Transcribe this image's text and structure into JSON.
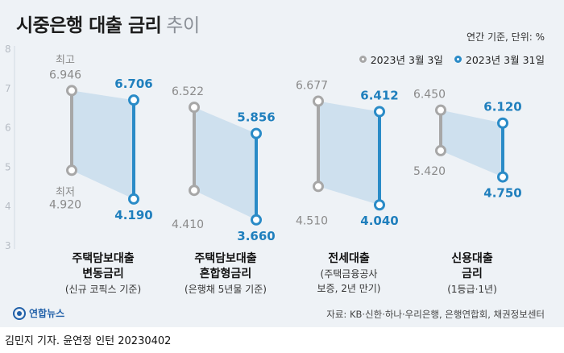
{
  "header": {
    "title": "시중은행 대출 금리",
    "title_suffix": "추이",
    "unit": "연간 기준, 단위: %"
  },
  "footer": {
    "logo_text": "연합뉴스",
    "source": "자료: KB·신한·하나·우리은행, 은행연합회, 채권정보센터",
    "credit": "김민지 기자. 윤연정 인턴  20230402"
  },
  "colors": {
    "old": "#a7a7a7",
    "new": "#2a8bc7",
    "band": "#b9d4ea",
    "grid": "#d3dae2"
  },
  "chart_data": {
    "type": "range",
    "title": "시중은행 대출 금리 추이",
    "ylabel": "연간 기준, 단위: %",
    "ylim": [
      3,
      8
    ],
    "yticks": [
      3,
      4,
      5,
      6,
      7,
      8
    ],
    "grid": false,
    "legend_position": "top-right",
    "series": [
      {
        "name": "2023년 3월 3일",
        "high": [
          6.946,
          6.522,
          6.677,
          6.45
        ],
        "low": [
          4.92,
          4.41,
          4.51,
          5.42
        ]
      },
      {
        "name": "2023년 3월 31일",
        "high": [
          6.706,
          5.856,
          6.412,
          6.12
        ],
        "low": [
          4.19,
          3.66,
          4.04,
          4.75
        ]
      }
    ],
    "categories": [
      {
        "title": [
          "주택담보대출",
          "변동금리"
        ],
        "note": [
          "(신규 코픽스 기준)"
        ]
      },
      {
        "title": [
          "주택담보대출",
          "혼합형금리"
        ],
        "note": [
          "(은행채 5년물 기준)"
        ]
      },
      {
        "title": [
          "전세대출"
        ],
        "note": [
          "(주택금융공사",
          "보증, 2년 만기)"
        ]
      },
      {
        "title": [
          "신용대출",
          "금리"
        ],
        "note": [
          "(1등급·1년)"
        ]
      }
    ],
    "annotations": {
      "high_label": "최고",
      "low_label": "최저"
    }
  }
}
